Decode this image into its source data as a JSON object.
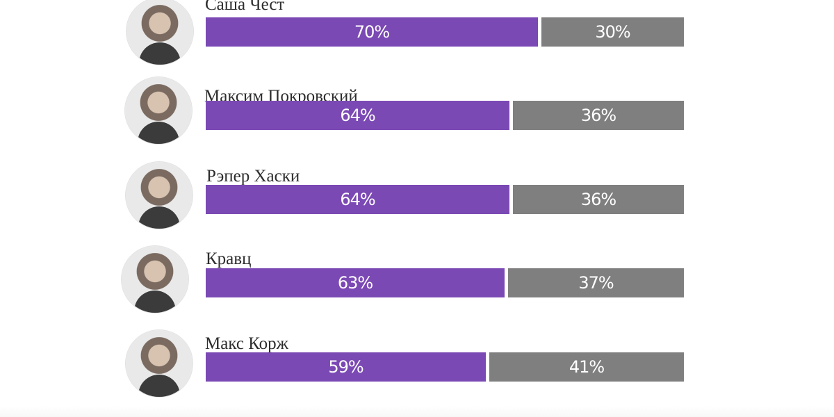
{
  "chart_data": {
    "type": "bar",
    "categories": [
      "Саша Чест",
      "Максим Покровский",
      "Рэпер Хаски",
      "Кравц",
      "Макс Корж"
    ],
    "series": [
      {
        "values": [
          70,
          64,
          64,
          63,
          59
        ],
        "labels": [
          "70%",
          "64%",
          "64%",
          "63%",
          "59%"
        ],
        "color": "#7b49b4"
      },
      {
        "values": [
          30,
          36,
          36,
          37,
          41
        ],
        "labels": [
          "30%",
          "36%",
          "36%",
          "37%",
          "41%"
        ],
        "color": "#7f7f7f"
      }
    ],
    "value_unit": "%",
    "stacked": true,
    "orientation": "horizontal"
  }
}
